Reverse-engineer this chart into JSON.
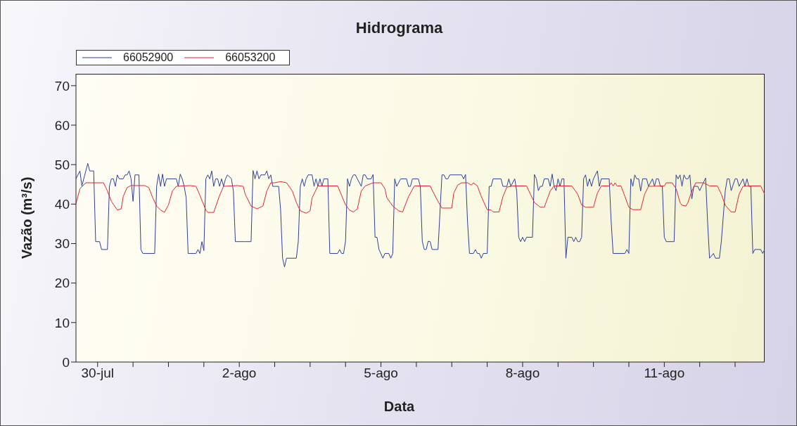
{
  "chart_data": {
    "type": "line",
    "title": "Hidrograma",
    "xlabel": "Data",
    "ylabel": "Vazão (m³/s)",
    "legend": "top left",
    "grid": false,
    "marker": "none",
    "line_style": "solid",
    "xlim": [
      "--07-29T13:00",
      "--08-13T03:00"
    ],
    "xticks": [
      {
        "value": "--07-30T00:00",
        "label": "30-jul"
      },
      {
        "value": "--07-30T18:00",
        "label": null
      },
      {
        "value": "--07-31T12:00",
        "label": null
      },
      {
        "value": "--08-01T06:00",
        "label": null
      },
      {
        "value": "--08-02T00:00",
        "label": "2-ago"
      },
      {
        "value": "--08-02T18:00",
        "label": null
      },
      {
        "value": "--08-03T12:00",
        "label": null
      },
      {
        "value": "--08-04T06:00",
        "label": null
      },
      {
        "value": "--08-05T00:00",
        "label": "5-ago"
      },
      {
        "value": "--08-05T18:00",
        "label": null
      },
      {
        "value": "--08-06T12:00",
        "label": null
      },
      {
        "value": "--08-07T06:00",
        "label": null
      },
      {
        "value": "--08-08T00:00",
        "label": "8-ago"
      },
      {
        "value": "--08-08T18:00",
        "label": null
      },
      {
        "value": "--08-09T12:00",
        "label": null
      },
      {
        "value": "--08-10T06:00",
        "label": null
      },
      {
        "value": "--08-11T00:00",
        "label": "11-ago"
      },
      {
        "value": "--08-11T18:00",
        "label": null
      },
      {
        "value": "--08-12T12:00",
        "label": null
      }
    ],
    "ylim": [
      0,
      73
    ],
    "yticks": [
      0,
      10,
      20,
      30,
      40,
      50,
      60,
      70
    ],
    "series": [
      {
        "name": "66052900",
        "color": "#2e3f9e",
        "x": [
          "--07-29T13:00",
          "--07-29T15:00",
          "--07-29T16:00",
          "--07-29T19:00",
          "--07-29T20:00",
          "--07-29T22:00",
          "--07-29T23:00",
          "--07-30T01:00",
          "--07-30T02:00",
          "--07-30T05:00",
          "--07-30T06:00",
          "--07-30T07:00",
          "--07-30T08:00",
          "--07-30T09:00",
          "--07-30T10:00",
          "--07-30T11:00",
          "--07-30T13:00",
          "--07-30T14:00",
          "--07-30T15:00",
          "--07-30T16:00",
          "--07-30T17:00",
          "--07-30T18:00",
          "--07-30T19:00",
          "--07-30T21:00",
          "--07-30T22:00",
          "--07-30T23:00",
          "--07-31T05:00",
          "--07-31T06:00",
          "--07-31T07:00",
          "--07-31T08:00",
          "--07-31T09:00",
          "--07-31T10:00",
          "--07-31T11:00",
          "--07-31T16:00",
          "--07-31T17:00",
          "--07-31T18:00",
          "--07-31T19:00",
          "--07-31T20:00",
          "--07-31T21:00",
          "--07-31T22:00",
          "--08-01T02:00",
          "--08-01T03:00",
          "--08-01T04:00",
          "--08-01T05:00",
          "--08-01T06:00",
          "--08-01T07:00",
          "--08-01T08:00",
          "--08-01T09:00",
          "--08-01T10:00",
          "--08-01T11:00",
          "--08-01T12:00",
          "--08-01T13:00",
          "--08-01T14:00",
          "--08-01T15:00",
          "--08-01T16:00",
          "--08-01T17:00",
          "--08-01T18:00",
          "--08-01T20:00",
          "--08-01T21:00",
          "--08-01T22:00",
          "--08-02T03:00",
          "--08-02T06:00",
          "--08-02T07:00",
          "--08-02T08:00",
          "--08-02T09:00",
          "--08-02T10:00",
          "--08-02T11:00",
          "--08-02T13:00",
          "--08-02T14:00",
          "--08-02T15:00",
          "--08-02T16:00",
          "--08-02T17:00",
          "--08-02T20:00",
          "--08-02T21:00",
          "--08-02T22:00",
          "--08-02T23:00",
          "--08-03T00:00",
          "--08-03T05:00",
          "--08-03T06:00",
          "--08-03T07:00",
          "--08-03T08:00",
          "--08-03T09:00",
          "--08-03T10:00",
          "--08-03T11:00",
          "--08-03T13:00",
          "--08-03T14:00",
          "--08-03T15:00",
          "--08-03T16:00",
          "--08-03T17:00",
          "--08-03T18:00",
          "--08-03T19:00",
          "--08-03T21:00",
          "--08-03T22:00",
          "--08-04T02:00",
          "--08-04T03:00",
          "--08-04T04:00",
          "--08-04T05:00",
          "--08-04T06:00",
          "--08-04T07:00",
          "--08-04T08:00",
          "--08-04T09:00",
          "--08-04T10:00",
          "--08-04T11:00",
          "--08-04T12:00",
          "--08-04T14:00",
          "--08-04T15:00",
          "--08-04T16:00",
          "--08-04T17:00",
          "--08-04T19:00",
          "--08-04T20:00",
          "--08-04T21:00",
          "--08-04T22:00",
          "--08-04T23:00",
          "--08-05T01:00",
          "--08-05T02:00",
          "--08-05T04:00",
          "--08-05T05:00",
          "--08-05T06:00",
          "--08-05T07:00",
          "--08-05T08:00",
          "--08-05T10:00",
          "--08-05T13:00",
          "--08-05T14:00",
          "--08-05T15:00",
          "--08-05T16:00",
          "--08-05T19:00",
          "--08-05T20:00",
          "--08-05T21:00",
          "--08-05T22:00",
          "--08-05T23:00",
          "--08-06T00:00",
          "--08-06T01:00",
          "--08-06T02:00",
          "--08-06T05:00",
          "--08-06T07:00",
          "--08-06T08:00",
          "--08-06T09:00",
          "--08-06T10:00",
          "--08-06T11:00",
          "--08-06T17:00",
          "--08-06T18:00",
          "--08-06T19:00",
          "--08-06T20:00",
          "--08-06T21:00",
          "--08-06T23:00",
          "--08-07T00:00",
          "--08-07T01:00",
          "--08-07T02:00",
          "--08-07T03:00",
          "--08-07T04:00",
          "--08-07T06:00",
          "--08-07T07:00",
          "--08-07T08:00",
          "--08-07T09:00",
          "--08-07T13:00",
          "--08-07T14:00",
          "--08-07T16:00",
          "--08-07T17:00",
          "--08-07T18:00",
          "--08-07T20:00",
          "--08-07T21:00",
          "--08-07T22:00",
          "--08-07T23:00",
          "--08-08T00:00",
          "--08-08T01:00",
          "--08-08T02:00",
          "--08-08T05:00",
          "--08-08T06:00",
          "--08-08T07:00",
          "--08-08T08:00",
          "--08-08T09:00",
          "--08-08T10:00",
          "--08-08T11:00",
          "--08-08T13:00",
          "--08-08T14:00",
          "--08-08T15:00",
          "--08-08T16:00",
          "--08-08T17:00",
          "--08-08T18:00",
          "--08-08T19:00",
          "--08-08T20:00",
          "--08-08T21:00",
          "--08-08T22:00",
          "--08-08T23:00",
          "--08-09T01:00",
          "--08-09T02:00",
          "--08-09T03:00",
          "--08-09T04:00",
          "--08-09T05:00",
          "--08-09T06:00",
          "--08-09T07:00",
          "--08-09T08:00",
          "--08-09T09:00",
          "--08-09T10:00",
          "--08-09T11:00",
          "--08-09T12:00",
          "--08-09T14:00",
          "--08-09T15:00",
          "--08-09T16:00",
          "--08-09T20:00",
          "--08-09T21:00",
          "--08-09T22:00",
          "--08-10T04:00",
          "--08-10T05:00",
          "--08-10T06:00",
          "--08-10T07:00",
          "--08-10T08:00",
          "--08-10T09:00",
          "--08-10T10:00",
          "--08-10T11:00",
          "--08-10T12:00",
          "--08-10T13:00",
          "--08-10T15:00",
          "--08-10T16:00",
          "--08-10T18:00",
          "--08-10T19:00",
          "--08-10T20:00",
          "--08-10T21:00",
          "--08-10T22:00",
          "--08-10T23:00",
          "--08-11T00:00",
          "--08-11T01:00",
          "--08-11T05:00",
          "--08-11T06:00",
          "--08-11T07:00",
          "--08-11T08:00",
          "--08-11T09:00",
          "--08-11T10:00",
          "--08-11T11:00",
          "--08-11T12:00",
          "--08-11T13:00",
          "--08-11T14:00",
          "--08-11T15:00",
          "--08-11T17:00",
          "--08-11T18:00",
          "--08-11T19:00",
          "--08-11T21:00",
          "--08-11T22:00",
          "--08-11T23:00",
          "--08-12T01:00",
          "--08-12T02:00",
          "--08-12T04:00",
          "--08-12T05:00",
          "--08-12T07:00",
          "--08-12T08:00",
          "--08-12T09:00",
          "--08-12T10:00",
          "--08-12T12:00",
          "--08-12T13:00",
          "--08-12T14:00",
          "--08-12T16:00",
          "--08-12T17:00",
          "--08-12T18:00",
          "--08-12T19:00",
          "--08-12T20:00",
          "--08-12T21:00",
          "--08-12T22:00",
          "--08-13T01:00",
          "--08-13T02:00",
          "--08-13T03:00"
        ],
        "values": [
          46.4,
          48.4,
          44.6,
          50.3,
          48.4,
          48.4,
          30.5,
          30.5,
          28.5,
          28.5,
          44.5,
          46.4,
          46.4,
          44.5,
          47.4,
          46.4,
          46.4,
          47.4,
          47.4,
          48.4,
          46.4,
          40.7,
          47.4,
          47.4,
          28.5,
          27.5,
          27.5,
          44.5,
          47.6,
          44.5,
          47.6,
          44.5,
          46.4,
          46.4,
          44.5,
          47.6,
          46.4,
          44.5,
          41.6,
          27.5,
          27.5,
          28.5,
          27.5,
          30.5,
          28.2,
          46.4,
          47.4,
          46.4,
          48.4,
          44.5,
          46.4,
          46.4,
          44.5,
          46.4,
          44.5,
          46.4,
          47.4,
          46.4,
          43.3,
          30.5,
          30.5,
          30.5,
          48.5,
          46.4,
          48.4,
          46.4,
          47.4,
          47.4,
          48.4,
          46.4,
          47.4,
          44.5,
          44.5,
          38.6,
          26.3,
          24.1,
          26.3,
          26.3,
          30.6,
          44.5,
          46.4,
          44.5,
          46.4,
          47.4,
          47.4,
          44.5,
          46.4,
          44.5,
          46.4,
          44.5,
          46.4,
          46.4,
          27.5,
          27.5,
          28.5,
          27.5,
          27.5,
          30.6,
          46.4,
          44.5,
          46.4,
          47.4,
          47.4,
          46.4,
          44.5,
          47.4,
          47.4,
          46.4,
          46.4,
          47.5,
          31.6,
          31.6,
          28.5,
          26.3,
          27.5,
          27.5,
          26.3,
          27.5,
          46.4,
          44.5,
          46.4,
          46.4,
          44.5,
          44.5,
          46.4,
          46.4,
          44.5,
          30.6,
          28.5,
          28.5,
          30.6,
          30.5,
          28.5,
          28.5,
          47.4,
          47.4,
          46.4,
          46.4,
          47.4,
          47.4,
          46.4,
          47.5,
          35.6,
          27.5,
          27.5,
          28.5,
          27.5,
          27.5,
          26.3,
          27.5,
          27.5,
          44.5,
          44.5,
          46.4,
          46.4,
          44.5,
          44.5,
          46.4,
          44.5,
          46.4,
          43.3,
          31.6,
          30.5,
          31.6,
          30.5,
          31.6,
          31.6,
          47.5,
          46.4,
          43.4,
          44.5,
          44.5,
          46.4,
          46.4,
          44.5,
          47.6,
          44.5,
          43.4,
          46.4,
          44.5,
          46.4,
          46.4,
          26.3,
          31.6,
          31.6,
          30.5,
          31.6,
          30.5,
          30.5,
          31.6,
          46.4,
          47.4,
          44.5,
          46.4,
          44.5,
          46.4,
          48.4,
          44.5,
          46.4,
          46.4,
          35.6,
          27.5,
          27.5,
          28.5,
          27.5,
          46.4,
          44.5,
          47.4,
          46.4,
          46.4,
          43.3,
          46.4,
          46.4,
          44.5,
          46.4,
          44.5,
          46.4,
          46.4,
          44.5,
          44.5,
          31.6,
          30.5,
          30.5,
          47.4,
          46.4,
          47.4,
          44.5,
          47.4,
          46.4,
          46.4,
          47.4,
          41.3,
          44.5,
          44.5,
          43.4,
          44.5,
          46.6,
          35.6,
          26.3,
          27.5,
          26.3,
          26.3,
          30.6,
          43.4,
          46.4,
          46.4,
          43.4,
          46.4,
          46.4,
          44.5,
          46.4,
          44.5,
          46.4,
          44.5,
          44.5,
          27.5,
          28.5,
          28.5,
          27.5,
          28.5
        ]
      },
      {
        "name": "66053200",
        "color": "#e8232f",
        "x": [
          "--07-29T13:00",
          "--07-29T15:00",
          "--07-29T18:00",
          "--07-30T03:00",
          "--07-30T05:00",
          "--07-30T07:00",
          "--07-30T10:00",
          "--07-30T12:00",
          "--07-30T13:00",
          "--07-30T15:00",
          "--07-30T17:00",
          "--07-31T00:00",
          "--07-31T02:00",
          "--07-31T04:00",
          "--07-31T06:00",
          "--07-31T08:00",
          "--07-31T10:00",
          "--07-31T12:00",
          "--07-31T14:00",
          "--07-31T16:00",
          "--07-31T23:00",
          "--08-01T02:00",
          "--08-01T04:00",
          "--08-01T07:00",
          "--08-01T08:00",
          "--08-01T11:00",
          "--08-01T14:00",
          "--08-01T16:00",
          "--08-01T23:00",
          "--08-02T02:00",
          "--08-02T03:00",
          "--08-02T06:00",
          "--08-02T09:00",
          "--08-02T12:00",
          "--08-02T14:00",
          "--08-02T16:00",
          "--08-02T18:00",
          "--08-02T21:00",
          "--08-03T00:00",
          "--08-03T03:00",
          "--08-03T05:00",
          "--08-03T07:00",
          "--08-03T10:00",
          "--08-03T12:00",
          "--08-03T13:00",
          "--08-03T16:00",
          "--08-04T02:00",
          "--08-04T04:00",
          "--08-04T06:00",
          "--08-04T08:00",
          "--08-04T10:00",
          "--08-04T12:00",
          "--08-04T14:00",
          "--08-04T16:00",
          "--08-04T20:00",
          "--08-05T00:00",
          "--08-05T02:00",
          "--08-05T03:00",
          "--08-05T06:00",
          "--08-05T09:00",
          "--08-05T11:00",
          "--08-05T14:00",
          "--08-05T17:00",
          "--08-06T01:00",
          "--08-06T04:00",
          "--08-06T06:00",
          "--08-06T07:00",
          "--08-06T12:00",
          "--08-06T13:00",
          "--08-06T15:00",
          "--08-06T17:00",
          "--08-06T20:00",
          "--08-06T22:00",
          "--08-06T23:00",
          "--08-07T01:00",
          "--08-07T03:00",
          "--08-07T06:00",
          "--08-07T08:00",
          "--08-07T09:00",
          "--08-07T12:00",
          "--08-07T14:00",
          "--08-07T16:00",
          "--08-07T19:00",
          "--08-08T02:00",
          "--08-08T04:00",
          "--08-08T06:00",
          "--08-08T09:00",
          "--08-08T11:00",
          "--08-08T14:00",
          "--08-08T16:00",
          "--08-09T01:00",
          "--08-09T04:00",
          "--08-09T06:00",
          "--08-09T08:00",
          "--08-09T12:00",
          "--08-09T14:00",
          "--08-09T16:00",
          "--08-09T20:00",
          "--08-09T21:00",
          "--08-09T22:00",
          "--08-09T23:00",
          "--08-10T00:00",
          "--08-10T02:00",
          "--08-10T04:00",
          "--08-10T06:00",
          "--08-10T08:00",
          "--08-10T12:00",
          "--08-10T14:00",
          "--08-10T16:00",
          "--08-11T00:00",
          "--08-11T01:00",
          "--08-11T04:00",
          "--08-11T06:00",
          "--08-11T08:00",
          "--08-11T09:00",
          "--08-11T11:00",
          "--08-11T12:00",
          "--08-11T14:00",
          "--08-11T16:00",
          "--08-11T20:00",
          "--08-11T23:00",
          "--08-12T03:00",
          "--08-12T05:00",
          "--08-12T07:00",
          "--08-12T10:00",
          "--08-12T12:00",
          "--08-12T14:00",
          "--08-12T16:00",
          "--08-12T19:00",
          "--08-13T01:00",
          "--08-13T03:00"
        ],
        "values": [
          40.1,
          43.9,
          45.4,
          45.4,
          43.3,
          40.7,
          38.5,
          38.8,
          41.9,
          44.2,
          44.7,
          44.7,
          44.2,
          41.6,
          39.5,
          38.5,
          37.9,
          39.8,
          43.3,
          44.5,
          44.7,
          44.5,
          42.2,
          38.5,
          37.9,
          37.9,
          42.2,
          44.5,
          44.7,
          44.5,
          42.5,
          39.5,
          38.8,
          39.5,
          43.3,
          45.4,
          45.4,
          45.7,
          45.4,
          43.3,
          40.4,
          38.3,
          37.7,
          38.3,
          41.6,
          44.6,
          44.6,
          42.2,
          39.8,
          38.5,
          38.0,
          38.8,
          43.3,
          44.6,
          45.4,
          45.4,
          43.9,
          41.6,
          39.5,
          38.3,
          38.0,
          41.9,
          44.6,
          44.6,
          41.6,
          39.8,
          39.0,
          39.0,
          42.8,
          44.8,
          45.4,
          45.4,
          44.8,
          45.4,
          44.6,
          41.9,
          38.6,
          38.5,
          38.0,
          38.0,
          41.9,
          44.3,
          44.6,
          44.6,
          42.5,
          40.4,
          39.2,
          39.2,
          43.3,
          44.6,
          44.6,
          42.5,
          39.8,
          39.2,
          39.2,
          42.8,
          44.6,
          44.6,
          45.4,
          44.6,
          45.4,
          44.6,
          44.6,
          41.9,
          39.2,
          38.6,
          38.6,
          42.5,
          44.5,
          44.6,
          45.4,
          45.4,
          43.9,
          40.4,
          39.7,
          39.5,
          40.4,
          43.3,
          45.4,
          45.4,
          44.6,
          44.6,
          42.5,
          39.7,
          38.0,
          38.0,
          42.5,
          44.5,
          44.6,
          44.6,
          42.5
        ]
      }
    ]
  }
}
